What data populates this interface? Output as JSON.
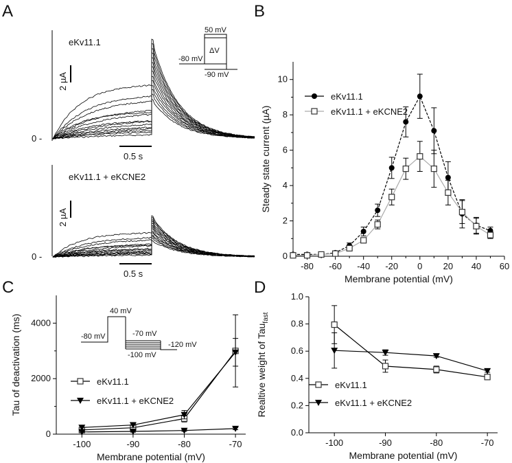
{
  "panel_a": {
    "letter": "A",
    "top_label": "eKv11.1",
    "bottom_label": "eKv11.1 + eKCNE2",
    "scale_current": "2 µA",
    "scale_time": "0.5 s",
    "zero_label": "0 -",
    "protocol": {
      "v_top": "50 mV",
      "v_hold": "-80 mV",
      "v_step": "ΔV",
      "v_tail": "-90 mV"
    }
  },
  "chart_data": [
    {
      "panel": "B",
      "type": "line",
      "xlabel": "Membrane potential (mV)",
      "ylabel": "Steady state  current (µA)",
      "xlim": [
        -90,
        60
      ],
      "ylim": [
        0,
        11
      ],
      "xticks": [
        "-80",
        "-60",
        "-40",
        "-20",
        "0",
        "20",
        "40",
        "60"
      ],
      "yticks": [
        "0",
        "2",
        "4",
        "6",
        "8",
        "10"
      ],
      "x": [
        -90,
        -80,
        -70,
        -60,
        -50,
        -40,
        -30,
        -20,
        -10,
        0,
        10,
        20,
        30,
        40,
        50
      ],
      "legend_position": "top-left",
      "series": [
        {
          "name": "eKv11.1",
          "marker": "filled-circle",
          "color": "#000000",
          "values": [
            0.1,
            0.1,
            0.1,
            0.2,
            0.6,
            1.4,
            2.6,
            5.0,
            7.6,
            9.05,
            7.1,
            4.45,
            2.4,
            1.75,
            1.45
          ],
          "errors": [
            0.05,
            0.05,
            0.05,
            0.1,
            0.15,
            0.25,
            0.35,
            0.6,
            0.85,
            1.25,
            1.3,
            0.9,
            0.8,
            0.45,
            0.2
          ]
        },
        {
          "name": "eKv11.1 + eKCNE2",
          "marker": "open-square",
          "color": "#999999",
          "values": [
            0.05,
            0.05,
            0.1,
            0.15,
            0.45,
            0.9,
            1.8,
            3.35,
            4.95,
            5.65,
            4.95,
            3.6,
            2.5,
            1.7,
            1.2
          ],
          "errors": [
            0.05,
            0.05,
            0.05,
            0.05,
            0.1,
            0.15,
            0.25,
            0.45,
            0.6,
            0.85,
            1.05,
            0.7,
            0.65,
            0.45,
            0.2
          ]
        }
      ]
    },
    {
      "panel": "C",
      "type": "line",
      "xlabel": "Membrane potential (mV)",
      "ylabel": "Tau of deactivation (ms)",
      "xlim": [
        -105,
        -68
      ],
      "ylim": [
        0,
        5000
      ],
      "xticks": [
        "-100",
        "-90",
        "-80",
        "-70"
      ],
      "yticks": [
        "0",
        "2000",
        "4000"
      ],
      "x": [
        -100,
        -90,
        -80,
        -70
      ],
      "legend_position": "center-left",
      "protocol": {
        "v_peak": "40 mV",
        "v_hold": "-80 mV",
        "v_step_top": "-70 mV",
        "v_step_bottom": "-100 mV",
        "v_end": "-120 mV"
      },
      "series": [
        {
          "name": "eKv11.1",
          "marker": "open-square",
          "color": "#000000",
          "values": [
            150,
            230,
            560,
            3000
          ],
          "errors": [
            60,
            80,
            120,
            1300
          ]
        },
        {
          "name": "eKv11.1 + eKCNE2",
          "marker": "filled-down-triangle",
          "color": "#000000",
          "values": [
            240,
            330,
            700,
            2950
          ],
          "errors": [
            70,
            90,
            150,
            500
          ]
        },
        {
          "name": "",
          "marker": "filled-down-triangle",
          "color": "#000000",
          "values": [
            80,
            100,
            130,
            200
          ],
          "errors": [
            30,
            30,
            30,
            40
          ]
        }
      ]
    },
    {
      "panel": "D",
      "type": "line",
      "xlabel": "Membrane potential (mV)",
      "ylabel": "Realtive weight of Tau",
      "ylabel_sub": "fast",
      "xlim": [
        -105,
        -68
      ],
      "ylim": [
        0,
        1.0
      ],
      "xticks": [
        "-100",
        "-90",
        "-80",
        "-70"
      ],
      "yticks": [
        "0.0",
        "0.2",
        "0.4",
        "0.6",
        "0.8",
        "1.0"
      ],
      "x": [
        -100,
        -90,
        -80,
        -70
      ],
      "legend_position": "bottom-left",
      "series": [
        {
          "name": "eKv11.1",
          "marker": "open-square",
          "color": "#000000",
          "values": [
            0.795,
            0.49,
            0.465,
            0.41
          ],
          "errors": [
            0.14,
            0.045,
            0.025,
            0.02
          ]
        },
        {
          "name": "eKv11.1 + eKCNE2",
          "marker": "filled-down-triangle",
          "color": "#000000",
          "values": [
            0.605,
            0.59,
            0.565,
            0.455
          ],
          "errors": [
            0.13,
            0.02,
            0.01,
            0.01
          ]
        }
      ]
    }
  ],
  "panel_letters": {
    "b": "B",
    "c": "C",
    "d": "D"
  }
}
